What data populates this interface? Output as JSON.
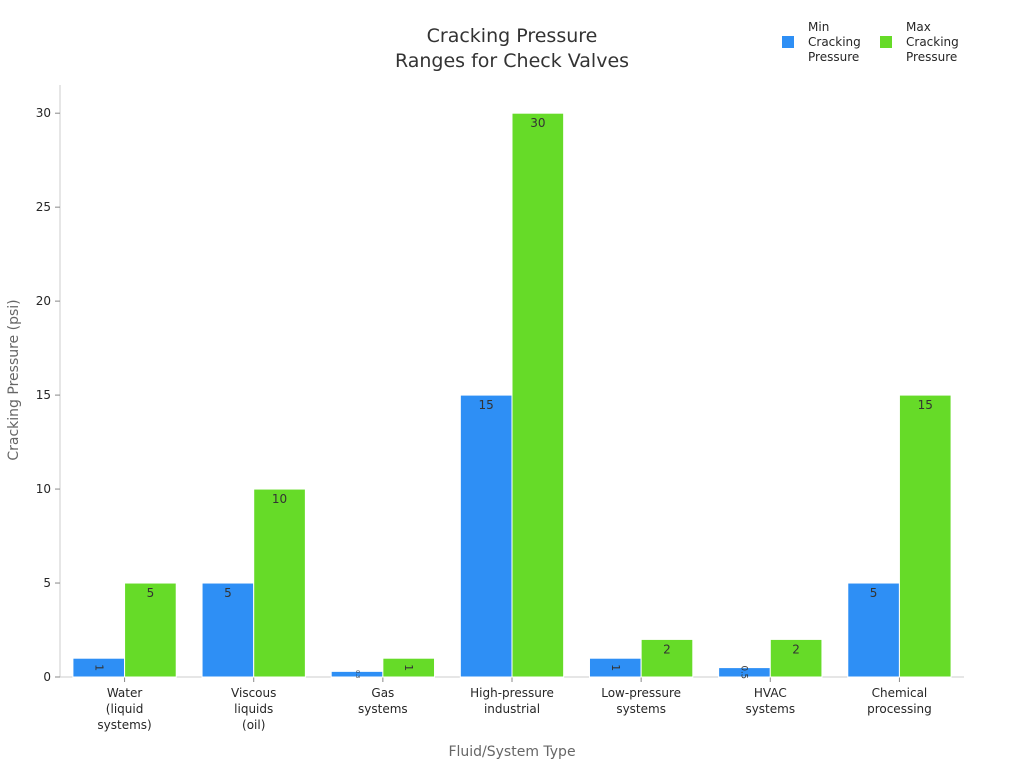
{
  "chart_data": {
    "type": "bar",
    "title": [
      "Cracking Pressure",
      "Ranges for Check Valves"
    ],
    "xlabel": "Fluid/System Type",
    "ylabel": "Cracking Pressure (psi)",
    "ylim": [
      0,
      31.5
    ],
    "yticks": [
      0,
      5,
      10,
      15,
      20,
      25,
      30
    ],
    "grid": false,
    "legend_position": "top-right",
    "categories": [
      [
        "Water",
        "(liquid",
        "systems)"
      ],
      [
        "Viscous",
        "liquids",
        "(oil)"
      ],
      [
        "Gas",
        "systems"
      ],
      [
        "High-pressure",
        "industrial"
      ],
      [
        "Low-pressure",
        "systems"
      ],
      [
        "HVAC",
        "systems"
      ],
      [
        "Chemical",
        "processing"
      ]
    ],
    "series": [
      {
        "name": [
          "Min",
          "Cracking",
          "Pressure"
        ],
        "color": "#2E8FF5",
        "values": [
          1,
          5,
          0.3,
          15,
          1,
          0.5,
          5
        ],
        "labels": [
          "1",
          "5",
          "0.3",
          "15",
          "1",
          "0.5",
          "5"
        ]
      },
      {
        "name": [
          "Max",
          "Cracking",
          "Pressure"
        ],
        "color": "#66DB28",
        "values": [
          5,
          10,
          1,
          30,
          2,
          2,
          15
        ],
        "labels": [
          "5",
          "10",
          "1",
          "30",
          "2",
          "2",
          "15"
        ]
      }
    ]
  }
}
